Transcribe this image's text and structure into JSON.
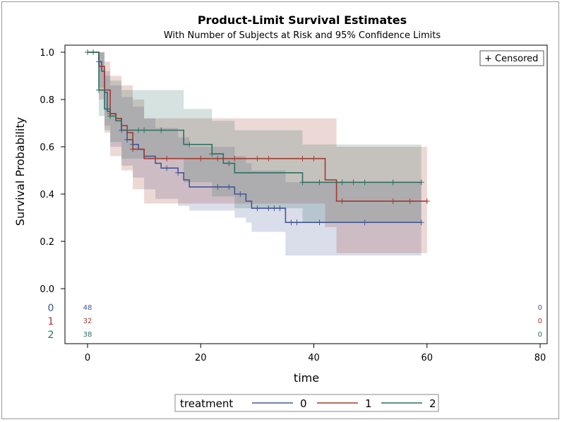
{
  "chart_data": {
    "type": "line",
    "step": true,
    "title": "Product-Limit Survival Estimates",
    "subtitle": "With Number of Subjects at Risk and 95% Confidence Limits",
    "xlabel": "time",
    "ylabel": "Survival Probability",
    "xlim": [
      0,
      80
    ],
    "ylim": [
      0,
      1
    ],
    "xticks": [
      0,
      20,
      40,
      60,
      80
    ],
    "yticks": [
      0.0,
      0.2,
      0.4,
      0.6,
      0.8,
      1.0
    ],
    "xtick_labels": [
      "0",
      "20",
      "40",
      "60",
      "80"
    ],
    "ytick_labels": [
      "0.0",
      "0.2",
      "0.4",
      "0.6",
      "0.8",
      "1.0"
    ],
    "grid": false,
    "inset_legend": "+ Censored",
    "legend": {
      "title": "treatment",
      "placement": "bottom",
      "entries": [
        "0",
        "1",
        "2"
      ]
    },
    "series": [
      {
        "name": "0",
        "color": "#445694",
        "steps": [
          [
            0,
            1.0
          ],
          [
            2,
            0.96
          ],
          [
            2.5,
            0.92
          ],
          [
            3,
            0.83
          ],
          [
            3.5,
            0.75
          ],
          [
            4,
            0.74
          ],
          [
            5,
            0.72
          ],
          [
            6,
            0.67
          ],
          [
            7,
            0.63
          ],
          [
            8,
            0.61
          ],
          [
            9,
            0.59
          ],
          [
            10,
            0.56
          ],
          [
            12,
            0.53
          ],
          [
            13,
            0.51
          ],
          [
            16,
            0.49
          ],
          [
            17,
            0.46
          ],
          [
            18,
            0.43
          ],
          [
            26,
            0.4
          ],
          [
            28,
            0.37
          ],
          [
            29,
            0.34
          ],
          [
            35,
            0.28
          ],
          [
            59,
            0.28
          ]
        ],
        "censored": [
          2,
          6,
          7,
          8,
          14,
          16,
          23,
          25,
          27,
          30,
          32,
          33,
          34,
          36,
          37,
          41,
          49,
          59
        ],
        "ci": {
          "lower": [
            [
              0,
              1.0
            ],
            [
              2,
              0.85
            ],
            [
              3,
              0.69
            ],
            [
              4,
              0.6
            ],
            [
              6,
              0.52
            ],
            [
              8,
              0.47
            ],
            [
              10,
              0.42
            ],
            [
              12,
              0.38
            ],
            [
              16,
              0.35
            ],
            [
              18,
              0.33
            ],
            [
              26,
              0.3
            ],
            [
              28,
              0.28
            ],
            [
              29,
              0.24
            ],
            [
              35,
              0.14
            ],
            [
              59,
              0.14
            ]
          ],
          "upper": [
            [
              0,
              1.0
            ],
            [
              2,
              1.0
            ],
            [
              3,
              0.92
            ],
            [
              4,
              0.86
            ],
            [
              6,
              0.81
            ],
            [
              8,
              0.77
            ],
            [
              10,
              0.72
            ],
            [
              12,
              0.68
            ],
            [
              16,
              0.64
            ],
            [
              18,
              0.6
            ],
            [
              26,
              0.56
            ],
            [
              28,
              0.53
            ],
            [
              29,
              0.5
            ],
            [
              35,
              0.45
            ],
            [
              59,
              0.45
            ]
          ]
        }
      },
      {
        "name": "1",
        "color": "#a23a2e",
        "steps": [
          [
            0,
            1.0
          ],
          [
            2,
            0.94
          ],
          [
            3,
            0.84
          ],
          [
            4,
            0.74
          ],
          [
            5,
            0.72
          ],
          [
            6,
            0.69
          ],
          [
            7,
            0.66
          ],
          [
            8,
            0.59
          ],
          [
            10,
            0.55
          ],
          [
            42,
            0.46
          ],
          [
            44,
            0.37
          ],
          [
            60,
            0.37
          ]
        ],
        "censored": [
          0,
          4,
          8,
          14,
          20,
          23,
          26,
          30,
          32,
          38,
          40,
          45,
          54,
          57,
          60
        ],
        "ci": {
          "lower": [
            [
              0,
              1.0
            ],
            [
              2,
              0.8
            ],
            [
              3,
              0.66
            ],
            [
              4,
              0.56
            ],
            [
              6,
              0.5
            ],
            [
              8,
              0.42
            ],
            [
              10,
              0.36
            ],
            [
              42,
              0.26
            ],
            [
              44,
              0.15
            ],
            [
              60,
              0.15
            ]
          ],
          "upper": [
            [
              0,
              1.0
            ],
            [
              2,
              1.0
            ],
            [
              3,
              0.96
            ],
            [
              4,
              0.9
            ],
            [
              6,
              0.86
            ],
            [
              8,
              0.8
            ],
            [
              10,
              0.72
            ],
            [
              42,
              0.72
            ],
            [
              44,
              0.6
            ],
            [
              60,
              0.6
            ]
          ]
        }
      },
      {
        "name": "2",
        "color": "#2f6f60",
        "steps": [
          [
            0,
            1.0
          ],
          [
            2,
            0.84
          ],
          [
            3,
            0.76
          ],
          [
            4,
            0.73
          ],
          [
            5,
            0.71
          ],
          [
            6,
            0.67
          ],
          [
            17,
            0.61
          ],
          [
            22,
            0.57
          ],
          [
            24,
            0.53
          ],
          [
            26,
            0.49
          ],
          [
            38,
            0.45
          ],
          [
            59,
            0.45
          ]
        ],
        "censored": [
          0,
          1,
          2,
          4,
          9,
          10,
          13,
          18,
          22,
          25,
          38,
          41,
          45,
          47,
          49,
          54,
          59
        ],
        "ci": {
          "lower": [
            [
              0,
              1.0
            ],
            [
              2,
              0.73
            ],
            [
              3,
              0.67
            ],
            [
              4,
              0.62
            ],
            [
              6,
              0.55
            ],
            [
              17,
              0.45
            ],
            [
              22,
              0.39
            ],
            [
              26,
              0.34
            ],
            [
              38,
              0.28
            ],
            [
              59,
              0.28
            ]
          ],
          "upper": [
            [
              0,
              1.0
            ],
            [
              2,
              1.0
            ],
            [
              3,
              0.9
            ],
            [
              4,
              0.88
            ],
            [
              6,
              0.84
            ],
            [
              17,
              0.76
            ],
            [
              22,
              0.71
            ],
            [
              26,
              0.67
            ],
            [
              38,
              0.61
            ],
            [
              59,
              0.61
            ]
          ]
        }
      }
    ],
    "at_risk": [
      {
        "group": "0",
        "color": "#445694",
        "times": [
          0,
          80
        ],
        "counts": [
          "48",
          "0"
        ]
      },
      {
        "group": "1",
        "color": "#a23a2e",
        "times": [
          0,
          80
        ],
        "counts": [
          "32",
          "0"
        ]
      },
      {
        "group": "2",
        "color": "#2f6f60",
        "times": [
          0,
          80
        ],
        "counts": [
          "38",
          "0"
        ]
      }
    ]
  }
}
